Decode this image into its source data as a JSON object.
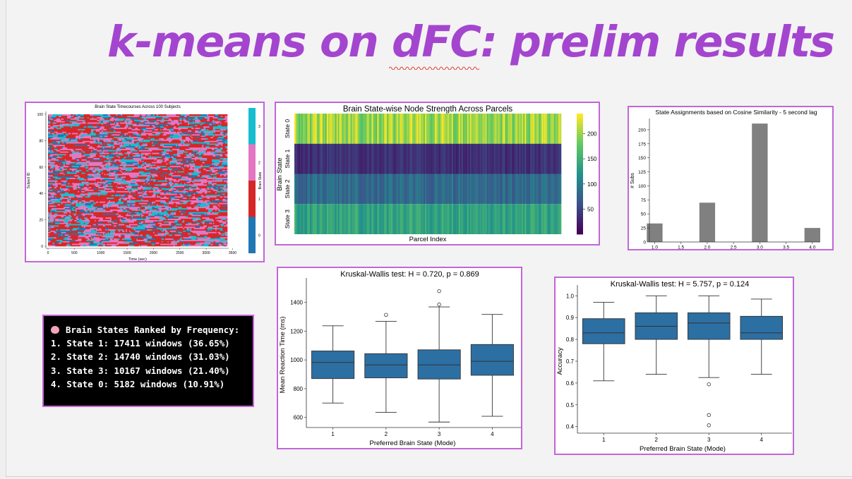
{
  "slide": {
    "title": "k-means on dFC: prelim results",
    "title_color": "#a445cf",
    "frame_color": "#c266d8"
  },
  "terminal": {
    "icon": "brain-emoji-icon",
    "heading": "Brain States Ranked by Frequency:",
    "lines": [
      "1. State 1: 17411 windows (36.65%)",
      "2. State 2: 14740 windows (31.03%)",
      "3. State 3: 10167 windows (21.40%)",
      "4. State 0: 5182 windows (10.91%)"
    ]
  },
  "chart_data": [
    {
      "type": "heatmap",
      "title": "Brain State Timecourses Across 100 Subjects",
      "xlabel": "Time (sec)",
      "ylabel": "Subject ID",
      "colorbar_label": "Brain State",
      "xticks": [
        "0",
        "500",
        "1000",
        "1500",
        "2000",
        "2500",
        "3000",
        "3500"
      ],
      "yticks": [
        "0",
        "20",
        "40",
        "60",
        "80",
        "100"
      ],
      "xlim": [
        0,
        3500
      ],
      "ylim": [
        0,
        100
      ],
      "colorbar_ticks": [
        "0",
        "1",
        "2",
        "3"
      ],
      "state_colors": [
        "#1f77b4",
        "#d62728",
        "#e377c2",
        "#17becf"
      ]
    },
    {
      "type": "heatmap",
      "title": "Brain State-wise Node Strength Across Parcels",
      "xlabel": "Parcel Index",
      "ylabel": "Brain State",
      "rows": [
        "State 0",
        "State 1",
        "State 2",
        "State 3"
      ],
      "colorbar_ticks": [
        "50",
        "100",
        "150",
        "200"
      ],
      "colorbar_range": [
        0,
        240
      ],
      "colormap": "viridis"
    },
    {
      "type": "bar",
      "title": "State Assignments based on Cosine Similarity - 5 second lag",
      "ylabel": "# Subs",
      "xlabel": "",
      "x": [
        1.0,
        2.0,
        3.0,
        4.0
      ],
      "values": [
        33,
        70,
        211,
        25
      ],
      "xticks": [
        "1.0",
        "1.5",
        "2.0",
        "2.5",
        "3.0",
        "3.5",
        "4.0"
      ],
      "yticks": [
        "0",
        "25",
        "50",
        "75",
        "100",
        "125",
        "150",
        "175",
        "200"
      ],
      "ylim": [
        0,
        220
      ],
      "bar_color": "#808080"
    },
    {
      "type": "box",
      "title": "Kruskal-Wallis test: H = 0.720, p = 0.869",
      "xlabel": "Preferred Brain State (Mode)",
      "ylabel": "Mean Reaction Time (ms)",
      "categories": [
        "1",
        "2",
        "3",
        "4"
      ],
      "yticks": [
        "600",
        "800",
        "1000",
        "1200",
        "1400"
      ],
      "ylim": [
        530,
        1540
      ],
      "boxes": [
        {
          "whislo": 700,
          "q1": 870,
          "med": 982,
          "q3": 1062,
          "whishi": 1237,
          "fliers": []
        },
        {
          "whislo": 635,
          "q1": 875,
          "med": 965,
          "q3": 1043,
          "whishi": 1268,
          "fliers": [
            1313
          ]
        },
        {
          "whislo": 568,
          "q1": 867,
          "med": 965,
          "q3": 1070,
          "whishi": 1368,
          "fliers": [
            1385,
            1478
          ]
        },
        {
          "whislo": 608,
          "q1": 893,
          "med": 990,
          "q3": 1107,
          "whishi": 1316,
          "fliers": []
        }
      ],
      "box_color": "#2c6fa3"
    },
    {
      "type": "box",
      "title": "Kruskal-Wallis test: H = 5.757, p = 0.124",
      "xlabel": "Preferred Brain State (Mode)",
      "ylabel": "Accuracy",
      "categories": [
        "1",
        "2",
        "3",
        "4"
      ],
      "yticks": [
        "0.4",
        "0.5",
        "0.6",
        "0.7",
        "0.8",
        "0.9",
        "1.0"
      ],
      "ylim": [
        0.37,
        1.03
      ],
      "boxes": [
        {
          "whislo": 0.61,
          "q1": 0.78,
          "med": 0.83,
          "q3": 0.895,
          "whishi": 0.97,
          "fliers": []
        },
        {
          "whislo": 0.64,
          "q1": 0.8,
          "med": 0.86,
          "q3": 0.922,
          "whishi": 1.0,
          "fliers": []
        },
        {
          "whislo": 0.625,
          "q1": 0.8,
          "med": 0.875,
          "q3": 0.922,
          "whishi": 1.0,
          "fliers": [
            0.594,
            0.453,
            0.406
          ]
        },
        {
          "whislo": 0.64,
          "q1": 0.8,
          "med": 0.83,
          "q3": 0.906,
          "whishi": 0.985,
          "fliers": []
        }
      ],
      "box_color": "#2c6fa3"
    }
  ]
}
